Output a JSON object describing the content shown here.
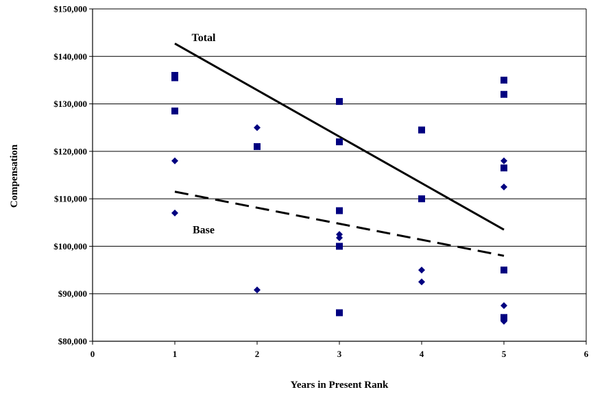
{
  "chart_data": {
    "type": "scatter",
    "title": "",
    "xlabel": "Years in Present Rank",
    "ylabel": "Compensation",
    "xlim": [
      0,
      6
    ],
    "ylim": [
      80000,
      150000
    ],
    "x_ticks": [
      0,
      1,
      2,
      3,
      4,
      5,
      6
    ],
    "x_tick_labels": [
      "0",
      "1",
      "2",
      "3",
      "4",
      "5",
      "6"
    ],
    "y_ticks": [
      80000,
      90000,
      100000,
      110000,
      120000,
      130000,
      140000,
      150000
    ],
    "y_tick_labels": [
      "$80,000",
      "$90,000",
      "$100,000",
      "$110,000",
      "$120,000",
      "$130,000",
      "$140,000",
      "$150,000"
    ],
    "grid": "horizontal",
    "legend": "none",
    "series": [
      {
        "marker": "square",
        "color": "#000080",
        "points": [
          [
            1,
            136000
          ],
          [
            1,
            135500
          ],
          [
            1,
            128500
          ],
          [
            2,
            121000
          ],
          [
            3,
            130500
          ],
          [
            3,
            122000
          ],
          [
            3,
            107500
          ],
          [
            3,
            100000
          ],
          [
            3,
            86000
          ],
          [
            4,
            124500
          ],
          [
            4,
            110000
          ],
          [
            5,
            135000
          ],
          [
            5,
            132000
          ],
          [
            5,
            116500
          ],
          [
            5,
            95000
          ],
          [
            5,
            85000
          ]
        ]
      },
      {
        "marker": "diamond",
        "color": "#000080",
        "points": [
          [
            1,
            118000
          ],
          [
            1,
            107000
          ],
          [
            2,
            125000
          ],
          [
            2,
            90800
          ],
          [
            3,
            102500
          ],
          [
            3,
            101800
          ],
          [
            4,
            95000
          ],
          [
            4,
            92500
          ],
          [
            5,
            118000
          ],
          [
            5,
            112500
          ],
          [
            5,
            87500
          ],
          [
            5,
            84200
          ]
        ]
      }
    ],
    "trendlines": [
      {
        "label": "Total",
        "style": "solid",
        "color": "#000000",
        "from": [
          1,
          142700
        ],
        "to": [
          5,
          103500
        ],
        "label_at": [
          1.35,
          143200
        ]
      },
      {
        "label": "Base",
        "style": "dashed",
        "color": "#000000",
        "from": [
          1,
          111500
        ],
        "to": [
          5,
          98000
        ],
        "label_at": [
          1.35,
          102700
        ]
      }
    ]
  }
}
